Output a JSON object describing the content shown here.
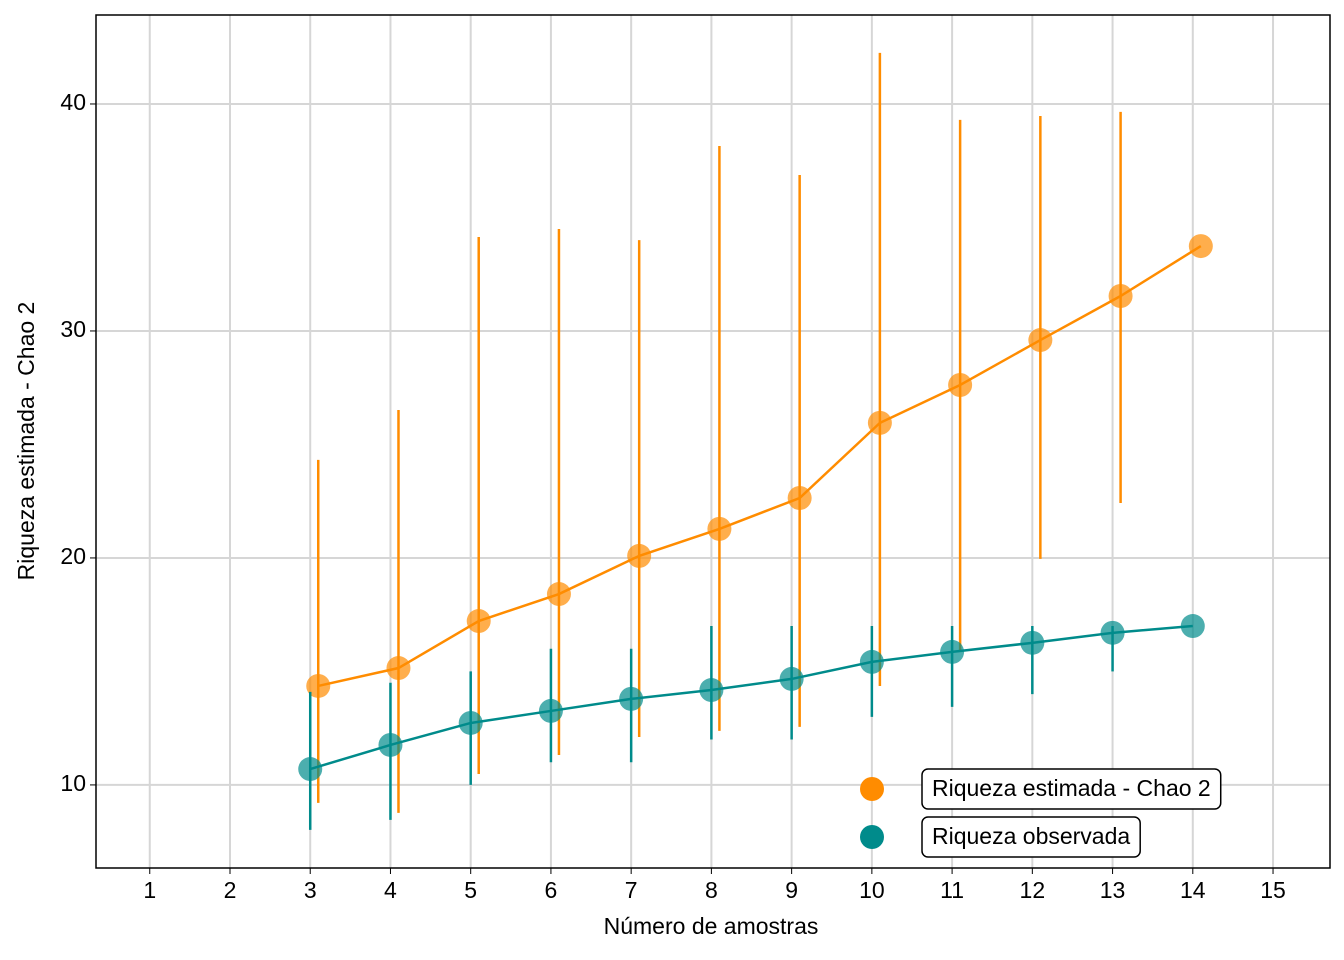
{
  "chart_data": {
    "type": "line",
    "x_label": "Número de amostras",
    "y_label": "Riqueza estimada - Chao 2",
    "xlim": [
      0.33,
      15.71
    ],
    "ylim": [
      6.34,
      43.92
    ],
    "xticks": [
      1,
      2,
      3,
      4,
      5,
      6,
      7,
      8,
      9,
      10,
      11,
      12,
      13,
      14,
      15
    ],
    "yticks": [
      10,
      20,
      30,
      40
    ],
    "grid": true,
    "legend_position": "bottom-right",
    "series": [
      {
        "name": "Riqueza estimada - Chao 2",
        "color": "#FF8C00",
        "x": [
          3.1,
          4.1,
          5.1,
          6.1,
          7.1,
          8.1,
          9.1,
          10.1,
          11.1,
          12.1,
          13.1,
          14.1
        ],
        "values": [
          14.36,
          15.15,
          17.22,
          18.41,
          20.09,
          21.28,
          22.64,
          25.95,
          27.62,
          29.6,
          31.54,
          33.74
        ],
        "low": [
          9.21,
          8.77,
          10.48,
          11.32,
          12.11,
          12.38,
          12.56,
          14.36,
          15.9,
          19.96,
          22.42,
          null
        ],
        "high": [
          24.32,
          26.52,
          34.14,
          34.49,
          34.0,
          38.15,
          36.87,
          42.25,
          39.3,
          39.47,
          39.65,
          null
        ]
      },
      {
        "name": "Riqueza observada",
        "color": "#008B8B",
        "x": [
          3,
          4,
          5,
          6,
          7,
          8,
          9,
          10,
          11,
          12,
          13,
          14
        ],
        "values": [
          10.7,
          11.76,
          12.73,
          13.26,
          13.79,
          14.18,
          14.67,
          15.42,
          15.86,
          16.26,
          16.7,
          17.0
        ],
        "low": [
          8.02,
          8.46,
          10,
          11,
          11,
          12,
          12,
          13,
          13.44,
          14,
          15,
          null
        ],
        "high": [
          14.1,
          14.5,
          15,
          16,
          16,
          17,
          17,
          17,
          17,
          17,
          17,
          null
        ]
      }
    ]
  }
}
